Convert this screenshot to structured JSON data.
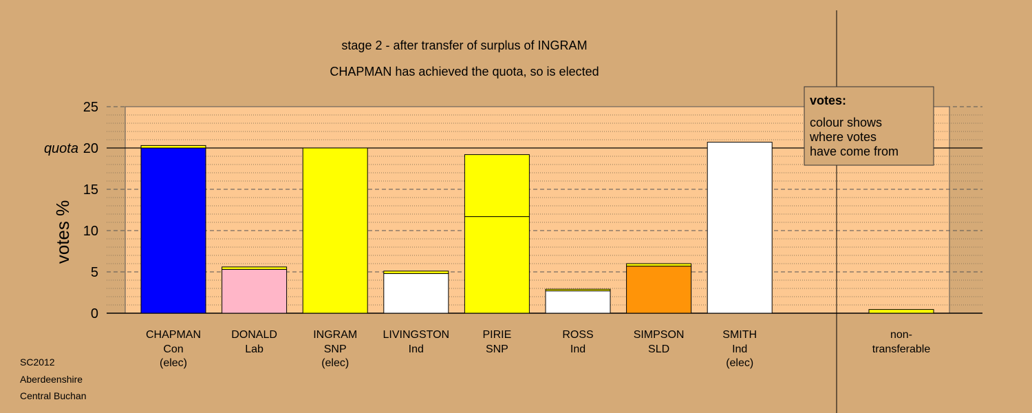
{
  "title_line1": "stage 2 - after transfer of surplus of INGRAM",
  "title_line2": "CHAPMAN has achieved the quota, so is elected",
  "footer": [
    "SC2012",
    "Aberdeenshire",
    "Central Buchan"
  ],
  "legend": {
    "heading": "votes:",
    "lines": [
      "colour shows",
      "where votes",
      "have come from"
    ]
  },
  "colors": {
    "background": "#d5aa77",
    "plot_area": "#fdc891",
    "original": "#ffffff",
    "Con": "#0000ff",
    "Lab": "#ffb6c8",
    "SNP": "#ffff00",
    "SLD": "#ff9408",
    "Ind": "#ffffff"
  },
  "chart_data": {
    "type": "bar",
    "stacked": true,
    "ylabel": "votes %",
    "ylim": [
      0,
      25
    ],
    "yticks": [
      0,
      5,
      10,
      15,
      20,
      25
    ],
    "quota": 20,
    "quota_label": "quota",
    "grid": "dashed major lines, dotted minor lines",
    "legend_position": "top-right",
    "categories": [
      {
        "name": "CHAPMAN",
        "party": "Con",
        "status": "(elec)",
        "segments": [
          {
            "from": "Con",
            "value": 20.0
          },
          {
            "from": "SNP",
            "value": 0.3
          }
        ]
      },
      {
        "name": "DONALD",
        "party": "Lab",
        "status": "",
        "segments": [
          {
            "from": "Lab",
            "value": 5.3
          },
          {
            "from": "SNP",
            "value": 0.3
          }
        ]
      },
      {
        "name": "INGRAM",
        "party": "SNP",
        "status": "(elec)",
        "segments": [
          {
            "from": "SNP",
            "value": 20.0
          }
        ]
      },
      {
        "name": "LIVINGSTON",
        "party": "Ind",
        "status": "",
        "segments": [
          {
            "from": "Ind",
            "value": 4.8
          },
          {
            "from": "SNP",
            "value": 0.3
          }
        ]
      },
      {
        "name": "PIRIE",
        "party": "SNP",
        "status": "",
        "segments": [
          {
            "from": "SNP",
            "value": 11.7
          },
          {
            "from": "SNP",
            "value": 7.5
          }
        ]
      },
      {
        "name": "ROSS",
        "party": "Ind",
        "status": "",
        "segments": [
          {
            "from": "Ind",
            "value": 2.7
          },
          {
            "from": "SNP",
            "value": 0.2
          }
        ]
      },
      {
        "name": "SIMPSON",
        "party": "SLD",
        "status": "",
        "segments": [
          {
            "from": "SLD",
            "value": 5.7
          },
          {
            "from": "SNP",
            "value": 0.3
          }
        ]
      },
      {
        "name": "SMITH",
        "party": "Ind",
        "status": "(elec)",
        "segments": [
          {
            "from": "Ind",
            "value": 20.7
          }
        ]
      }
    ],
    "non_transferable": {
      "label_line1": "non-",
      "label_line2": "transferable",
      "segments": [
        {
          "from": "SNP",
          "value": 0.45
        }
      ]
    }
  }
}
